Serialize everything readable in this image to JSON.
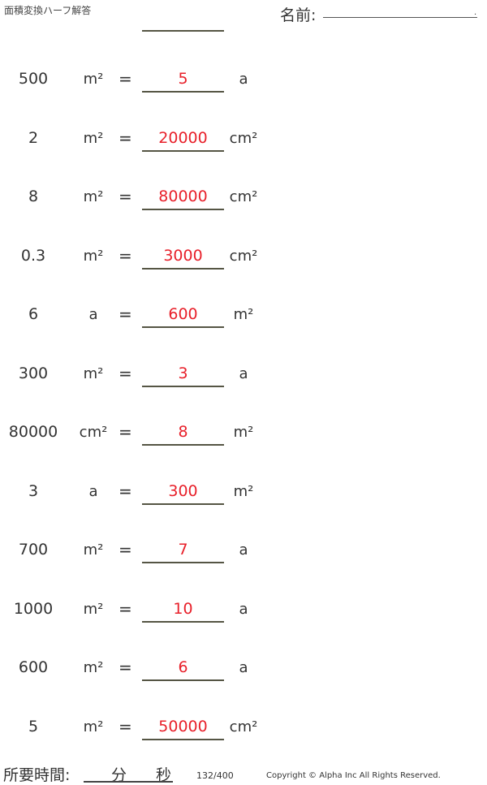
{
  "header": {
    "title": "面積変換ハーフ解答",
    "name_label": "名前:",
    "name_dot": "."
  },
  "problems": [
    {
      "value": "500",
      "from": "m²",
      "eq": "=",
      "answer": "5",
      "to": "a"
    },
    {
      "value": "2",
      "from": "m²",
      "eq": "=",
      "answer": "20000",
      "to": "cm²"
    },
    {
      "value": "8",
      "from": "m²",
      "eq": "=",
      "answer": "80000",
      "to": "cm²"
    },
    {
      "value": "0.3",
      "from": "m²",
      "eq": "=",
      "answer": "3000",
      "to": "cm²"
    },
    {
      "value": "6",
      "from": "a",
      "eq": "=",
      "answer": "600",
      "to": "m²"
    },
    {
      "value": "300",
      "from": "m²",
      "eq": "=",
      "answer": "3",
      "to": "a"
    },
    {
      "value": "80000",
      "from": "cm²",
      "eq": "=",
      "answer": "8",
      "to": "m²"
    },
    {
      "value": "3",
      "from": "a",
      "eq": "=",
      "answer": "300",
      "to": "m²"
    },
    {
      "value": "700",
      "from": "m²",
      "eq": "=",
      "answer": "7",
      "to": "a"
    },
    {
      "value": "1000",
      "from": "m²",
      "eq": "=",
      "answer": "10",
      "to": "a"
    },
    {
      "value": "600",
      "from": "m²",
      "eq": "=",
      "answer": "6",
      "to": "a"
    },
    {
      "value": "5",
      "from": "m²",
      "eq": "=",
      "answer": "50000",
      "to": "cm²"
    }
  ],
  "footer": {
    "time_label": "所要時間:",
    "minutes": "分",
    "seconds": "秒",
    "page": "132/400",
    "copyright": "Copyright © Alpha Inc All Rights Reserved."
  },
  "colors": {
    "answer": "#e8202a"
  }
}
